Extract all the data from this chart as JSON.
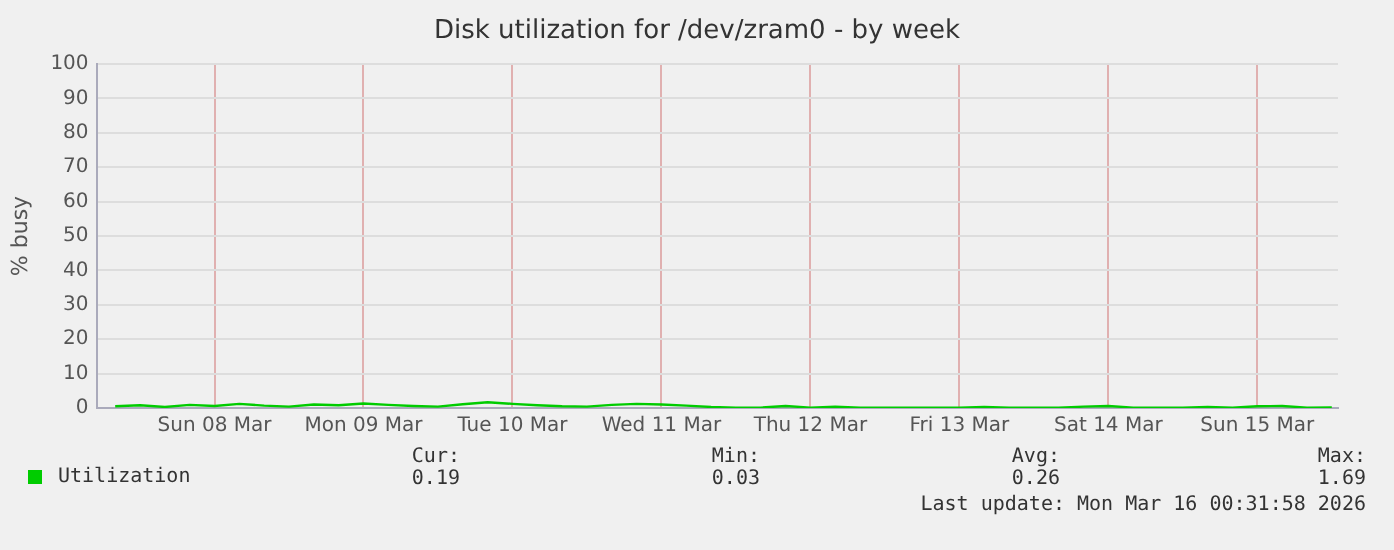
{
  "chart_data": {
    "type": "line",
    "title": "Disk utilization for /dev/zram0 - by week",
    "ylabel": "% busy",
    "x": [
      "2026-03-07T20:00",
      "2026-03-08T00:00",
      "2026-03-08T04:00",
      "2026-03-08T08:00",
      "2026-03-08T12:00",
      "2026-03-08T16:00",
      "2026-03-08T20:00",
      "2026-03-09T00:00",
      "2026-03-09T04:00",
      "2026-03-09T08:00",
      "2026-03-09T12:00",
      "2026-03-09T16:00",
      "2026-03-09T20:00",
      "2026-03-10T00:00",
      "2026-03-10T04:00",
      "2026-03-10T08:00",
      "2026-03-10T12:00",
      "2026-03-10T16:00",
      "2026-03-10T20:00",
      "2026-03-11T00:00",
      "2026-03-11T04:00",
      "2026-03-11T08:00",
      "2026-03-11T12:00",
      "2026-03-11T16:00",
      "2026-03-11T20:00",
      "2026-03-12T00:00",
      "2026-03-12T04:00",
      "2026-03-12T08:00",
      "2026-03-12T12:00",
      "2026-03-12T16:00",
      "2026-03-12T20:00",
      "2026-03-13T00:00",
      "2026-03-13T04:00",
      "2026-03-13T08:00",
      "2026-03-13T12:00",
      "2026-03-13T16:00",
      "2026-03-13T20:00",
      "2026-03-14T00:00",
      "2026-03-14T04:00",
      "2026-03-14T08:00",
      "2026-03-14T12:00",
      "2026-03-14T16:00",
      "2026-03-14T20:00",
      "2026-03-15T00:00",
      "2026-03-15T04:00",
      "2026-03-15T08:00",
      "2026-03-15T12:00",
      "2026-03-15T16:00",
      "2026-03-15T20:00",
      "2026-03-16T00:00"
    ],
    "series": [
      {
        "name": "Utilization",
        "color": "#00cc00",
        "values": [
          0.5,
          0.8,
          0.3,
          0.9,
          0.6,
          1.2,
          0.7,
          0.4,
          1.0,
          0.8,
          1.3,
          0.9,
          0.6,
          0.4,
          1.1,
          1.69,
          1.2,
          0.8,
          0.5,
          0.4,
          0.9,
          1.2,
          1.0,
          0.7,
          0.3,
          0.1,
          0.1,
          0.6,
          0.1,
          0.4,
          0.1,
          0.1,
          0.1,
          0.1,
          0.1,
          0.3,
          0.1,
          0.1,
          0.1,
          0.4,
          0.6,
          0.1,
          0.1,
          0.1,
          0.3,
          0.1,
          0.5,
          0.6,
          0.1,
          0.19
        ]
      }
    ],
    "xlim": [
      "2026-03-07T17:00",
      "2026-03-16T01:00"
    ],
    "xticks": [
      {
        "value": "2026-03-08T12:00",
        "label": "Sun 08 Mar"
      },
      {
        "value": "2026-03-09T12:00",
        "label": "Mon 09 Mar"
      },
      {
        "value": "2026-03-10T12:00",
        "label": "Tue 10 Mar"
      },
      {
        "value": "2026-03-11T12:00",
        "label": "Wed 11 Mar"
      },
      {
        "value": "2026-03-12T12:00",
        "label": "Thu 12 Mar"
      },
      {
        "value": "2026-03-13T12:00",
        "label": "Fri 13 Mar"
      },
      {
        "value": "2026-03-14T12:00",
        "label": "Sat 14 Mar"
      },
      {
        "value": "2026-03-15T12:00",
        "label": "Sun 15 Mar"
      }
    ],
    "ylim": [
      0,
      100
    ],
    "yticks": [
      0,
      10,
      20,
      30,
      40,
      50,
      60,
      70,
      80,
      90,
      100
    ],
    "grid": true,
    "legend": "bottom left",
    "marker": "none",
    "line_style": "solid",
    "annotations": [
      "Cur:\n0.19",
      "Min:\n0.03",
      "Avg:\n0.26",
      "Max:\n1.69",
      "Last update: Mon Mar 16 00:31:58 2026"
    ]
  }
}
